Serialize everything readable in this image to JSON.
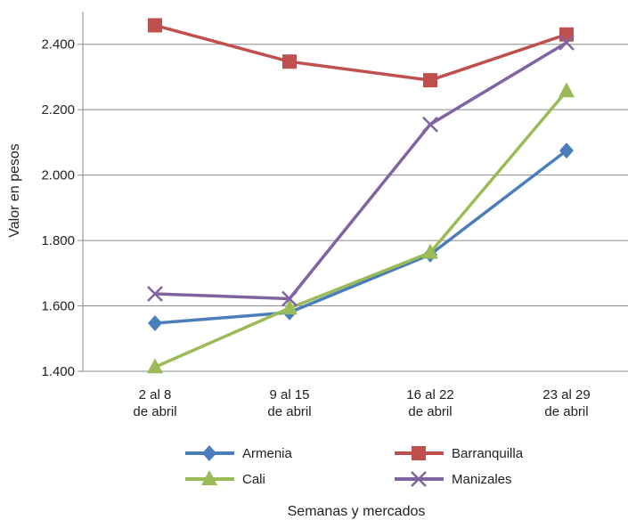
{
  "chart_data": {
    "type": "line",
    "categories": [
      [
        "2 al 8",
        "de abril"
      ],
      [
        "9 al 15",
        "de abril"
      ],
      [
        "16 al 22",
        "de abril"
      ],
      [
        "23 al 29",
        "de abril"
      ]
    ],
    "series": [
      {
        "name": "Armenia",
        "values": [
          1547,
          1580,
          1757,
          2075
        ],
        "color": "#4a7ebb",
        "marker": "diamond"
      },
      {
        "name": "Barranquilla",
        "values": [
          2458,
          2347,
          2290,
          2430
        ],
        "color": "#c0504d",
        "marker": "square"
      },
      {
        "name": "Cali",
        "values": [
          1413,
          1593,
          1763,
          2257
        ],
        "color": "#9bbb59",
        "marker": "triangle"
      },
      {
        "name": "Manizales",
        "values": [
          1637,
          1622,
          2155,
          2405
        ],
        "color": "#8064a2",
        "marker": "x"
      }
    ],
    "yticks": [
      "1.400",
      "1.600",
      "1.800",
      "2.000",
      "2.200",
      "2.400"
    ],
    "ytick_values": [
      1400,
      1600,
      1800,
      2000,
      2200,
      2400
    ],
    "ylim": [
      1400,
      2500
    ],
    "xlabel": "Semanas y mercados",
    "ylabel": "Valor en pesos",
    "grid": true,
    "legend_position": "bottom"
  }
}
